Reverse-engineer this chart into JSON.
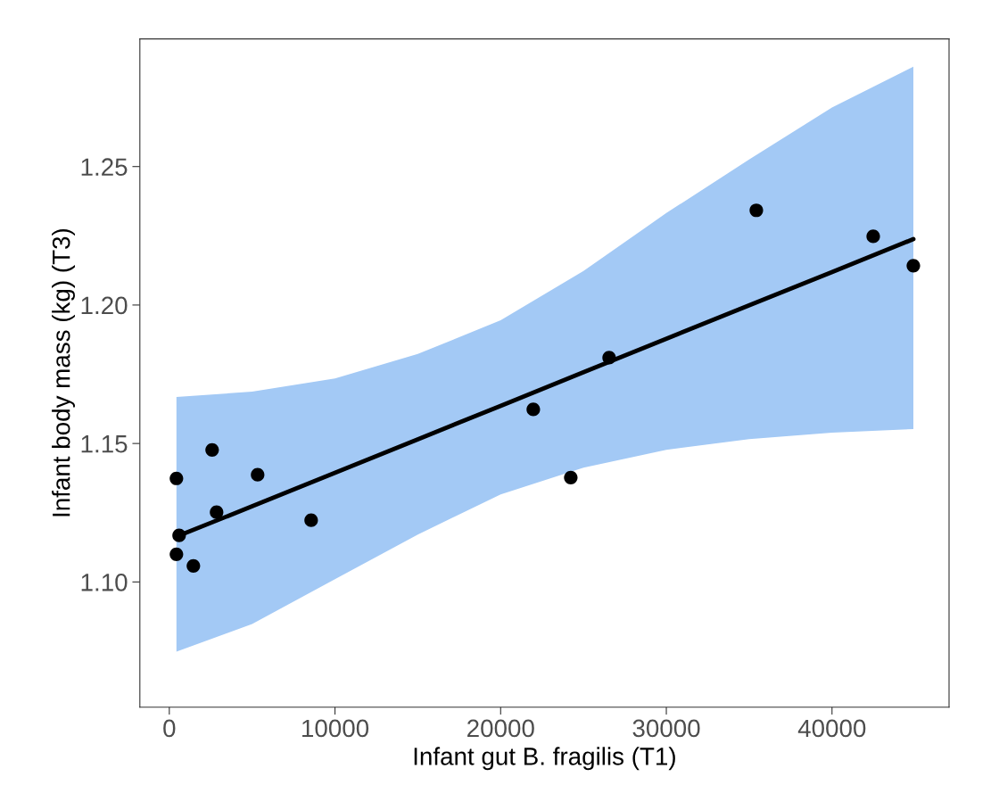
{
  "chart_data": {
    "type": "scatter",
    "xlabel": "Infant gut B. fragilis (T1)",
    "ylabel": "Infant body mass (kg) (T3)",
    "xlim": [
      -1777,
      47065
    ],
    "ylim": [
      1.0548,
      1.2961
    ],
    "xticks": [
      0,
      10000,
      20000,
      30000,
      40000
    ],
    "yticks": [
      {
        "value": 1.1,
        "label": "1.10"
      },
      {
        "value": 1.15,
        "label": "1.15"
      },
      {
        "value": 1.2,
        "label": "1.20"
      },
      {
        "value": 1.25,
        "label": "1.25"
      }
    ],
    "grid": false,
    "series": [
      {
        "type": "line",
        "color": "#000000",
        "marker": "none",
        "x": [
          431,
          5000,
          10000,
          15000,
          20000,
          25000,
          30000,
          35000,
          40000,
          44911
        ],
        "values": [
          1.1164,
          1.1273,
          1.1394,
          1.1515,
          1.1636,
          1.1757,
          1.1878,
          1.1999,
          1.2119,
          1.2238
        ],
        "lower": [
          1.0748,
          1.0848,
          1.101,
          1.1171,
          1.1316,
          1.1413,
          1.1477,
          1.1516,
          1.1539,
          1.1552
        ],
        "upper": [
          1.1668,
          1.1687,
          1.1735,
          1.1823,
          1.1945,
          1.2123,
          1.2332,
          1.2526,
          1.2713,
          1.2861
        ]
      },
      {
        "color": "#000000",
        "marker": "circle",
        "x": [
          431,
          431,
          592,
          1454,
          2585,
          2854,
          5331,
          8562,
          21971,
          24233,
          26548,
          35433,
          42488,
          44911
        ],
        "values": [
          1.1374,
          1.11,
          1.1168,
          1.1058,
          1.1477,
          1.1252,
          1.1387,
          1.1223,
          1.1623,
          1.1377,
          1.181,
          1.2342,
          1.2248,
          1.2142
        ]
      }
    ]
  }
}
